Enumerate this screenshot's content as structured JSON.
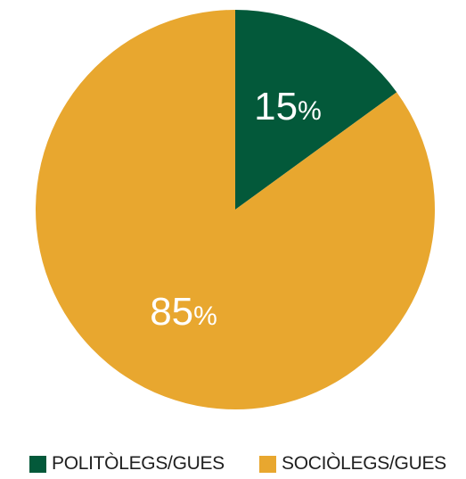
{
  "chart_data": {
    "type": "pie",
    "slices": [
      {
        "label": "POLITÒLEGS/GUES",
        "value": 15,
        "display": "15",
        "unit": "%",
        "color": "#03593a"
      },
      {
        "label": "SOCIÒLEGS/GUES",
        "value": 85,
        "display": "85",
        "unit": "%",
        "color": "#e8a72f"
      }
    ],
    "legend_placement": "bottom"
  }
}
